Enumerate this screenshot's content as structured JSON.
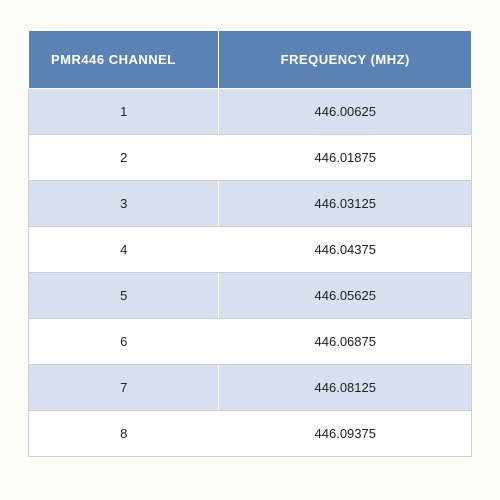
{
  "table": {
    "type": "table",
    "background_color": "#fdfdf8",
    "header_bg": "#5a82b4",
    "header_text_color": "#ffffff",
    "header_fontsize": 13,
    "row_odd_bg": "#d6e0ee",
    "row_even_bg": "#ffffff",
    "border_color": "#cfcfcf",
    "cell_fontsize": 13,
    "cell_text_color": "#222222",
    "columns": [
      {
        "key": "channel",
        "label": "PMR446 CHANNEL",
        "width": "43%",
        "align_header": "left",
        "align_cell": "center"
      },
      {
        "key": "frequency",
        "label": "FREQUENCY (MHZ)",
        "width": "57%",
        "align_header": "center",
        "align_cell": "center"
      }
    ],
    "rows": [
      {
        "channel": "1",
        "frequency": "446.00625"
      },
      {
        "channel": "2",
        "frequency": "446.01875"
      },
      {
        "channel": "3",
        "frequency": "446.03125"
      },
      {
        "channel": "4",
        "frequency": "446.04375"
      },
      {
        "channel": "5",
        "frequency": "446.05625"
      },
      {
        "channel": "6",
        "frequency": "446.06875"
      },
      {
        "channel": "7",
        "frequency": "446.08125"
      },
      {
        "channel": "8",
        "frequency": "446.09375"
      }
    ]
  }
}
